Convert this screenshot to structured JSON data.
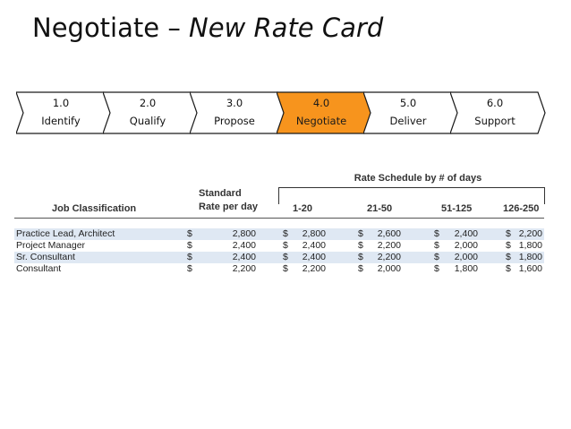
{
  "title": {
    "prefix": "Negotiate – ",
    "emphasis": "New Rate Card"
  },
  "process": {
    "steps": [
      {
        "num": "1.0",
        "label": "Identify",
        "active": false
      },
      {
        "num": "2.0",
        "label": "Qualify",
        "active": false
      },
      {
        "num": "3.0",
        "label": "Propose",
        "active": false
      },
      {
        "num": "4.0",
        "label": "Negotiate",
        "active": true
      },
      {
        "num": "5.0",
        "label": "Deliver",
        "active": false
      },
      {
        "num": "6.0",
        "label": "Support",
        "active": false
      }
    ],
    "colors": {
      "active": "#F7941D",
      "inactive": "#FFFFFF",
      "stroke": "#1A1A1A"
    }
  },
  "rate_table": {
    "schedule_title": "Rate Schedule by # of days",
    "headers": {
      "job": "Job Classification",
      "standard_line1": "Standard",
      "standard_line2": "Rate per day",
      "ranges": [
        "1-20",
        "21-50",
        "51-125",
        "126-250"
      ]
    },
    "currency": "$",
    "shade_color": "#DFE8F3",
    "rows": [
      {
        "name": "Practice Lead, Architect",
        "standard": "2,800",
        "rates": [
          "2,800",
          "2,600",
          "2,400",
          "2,200"
        ]
      },
      {
        "name": "Project Manager",
        "standard": "2,400",
        "rates": [
          "2,400",
          "2,200",
          "2,000",
          "1,800"
        ]
      },
      {
        "name": "Sr. Consultant",
        "standard": "2,400",
        "rates": [
          "2,400",
          "2,200",
          "2,000",
          "1,800"
        ]
      },
      {
        "name": "Consultant",
        "standard": "2,200",
        "rates": [
          "2,200",
          "2,000",
          "1,800",
          "1,600"
        ]
      }
    ]
  }
}
